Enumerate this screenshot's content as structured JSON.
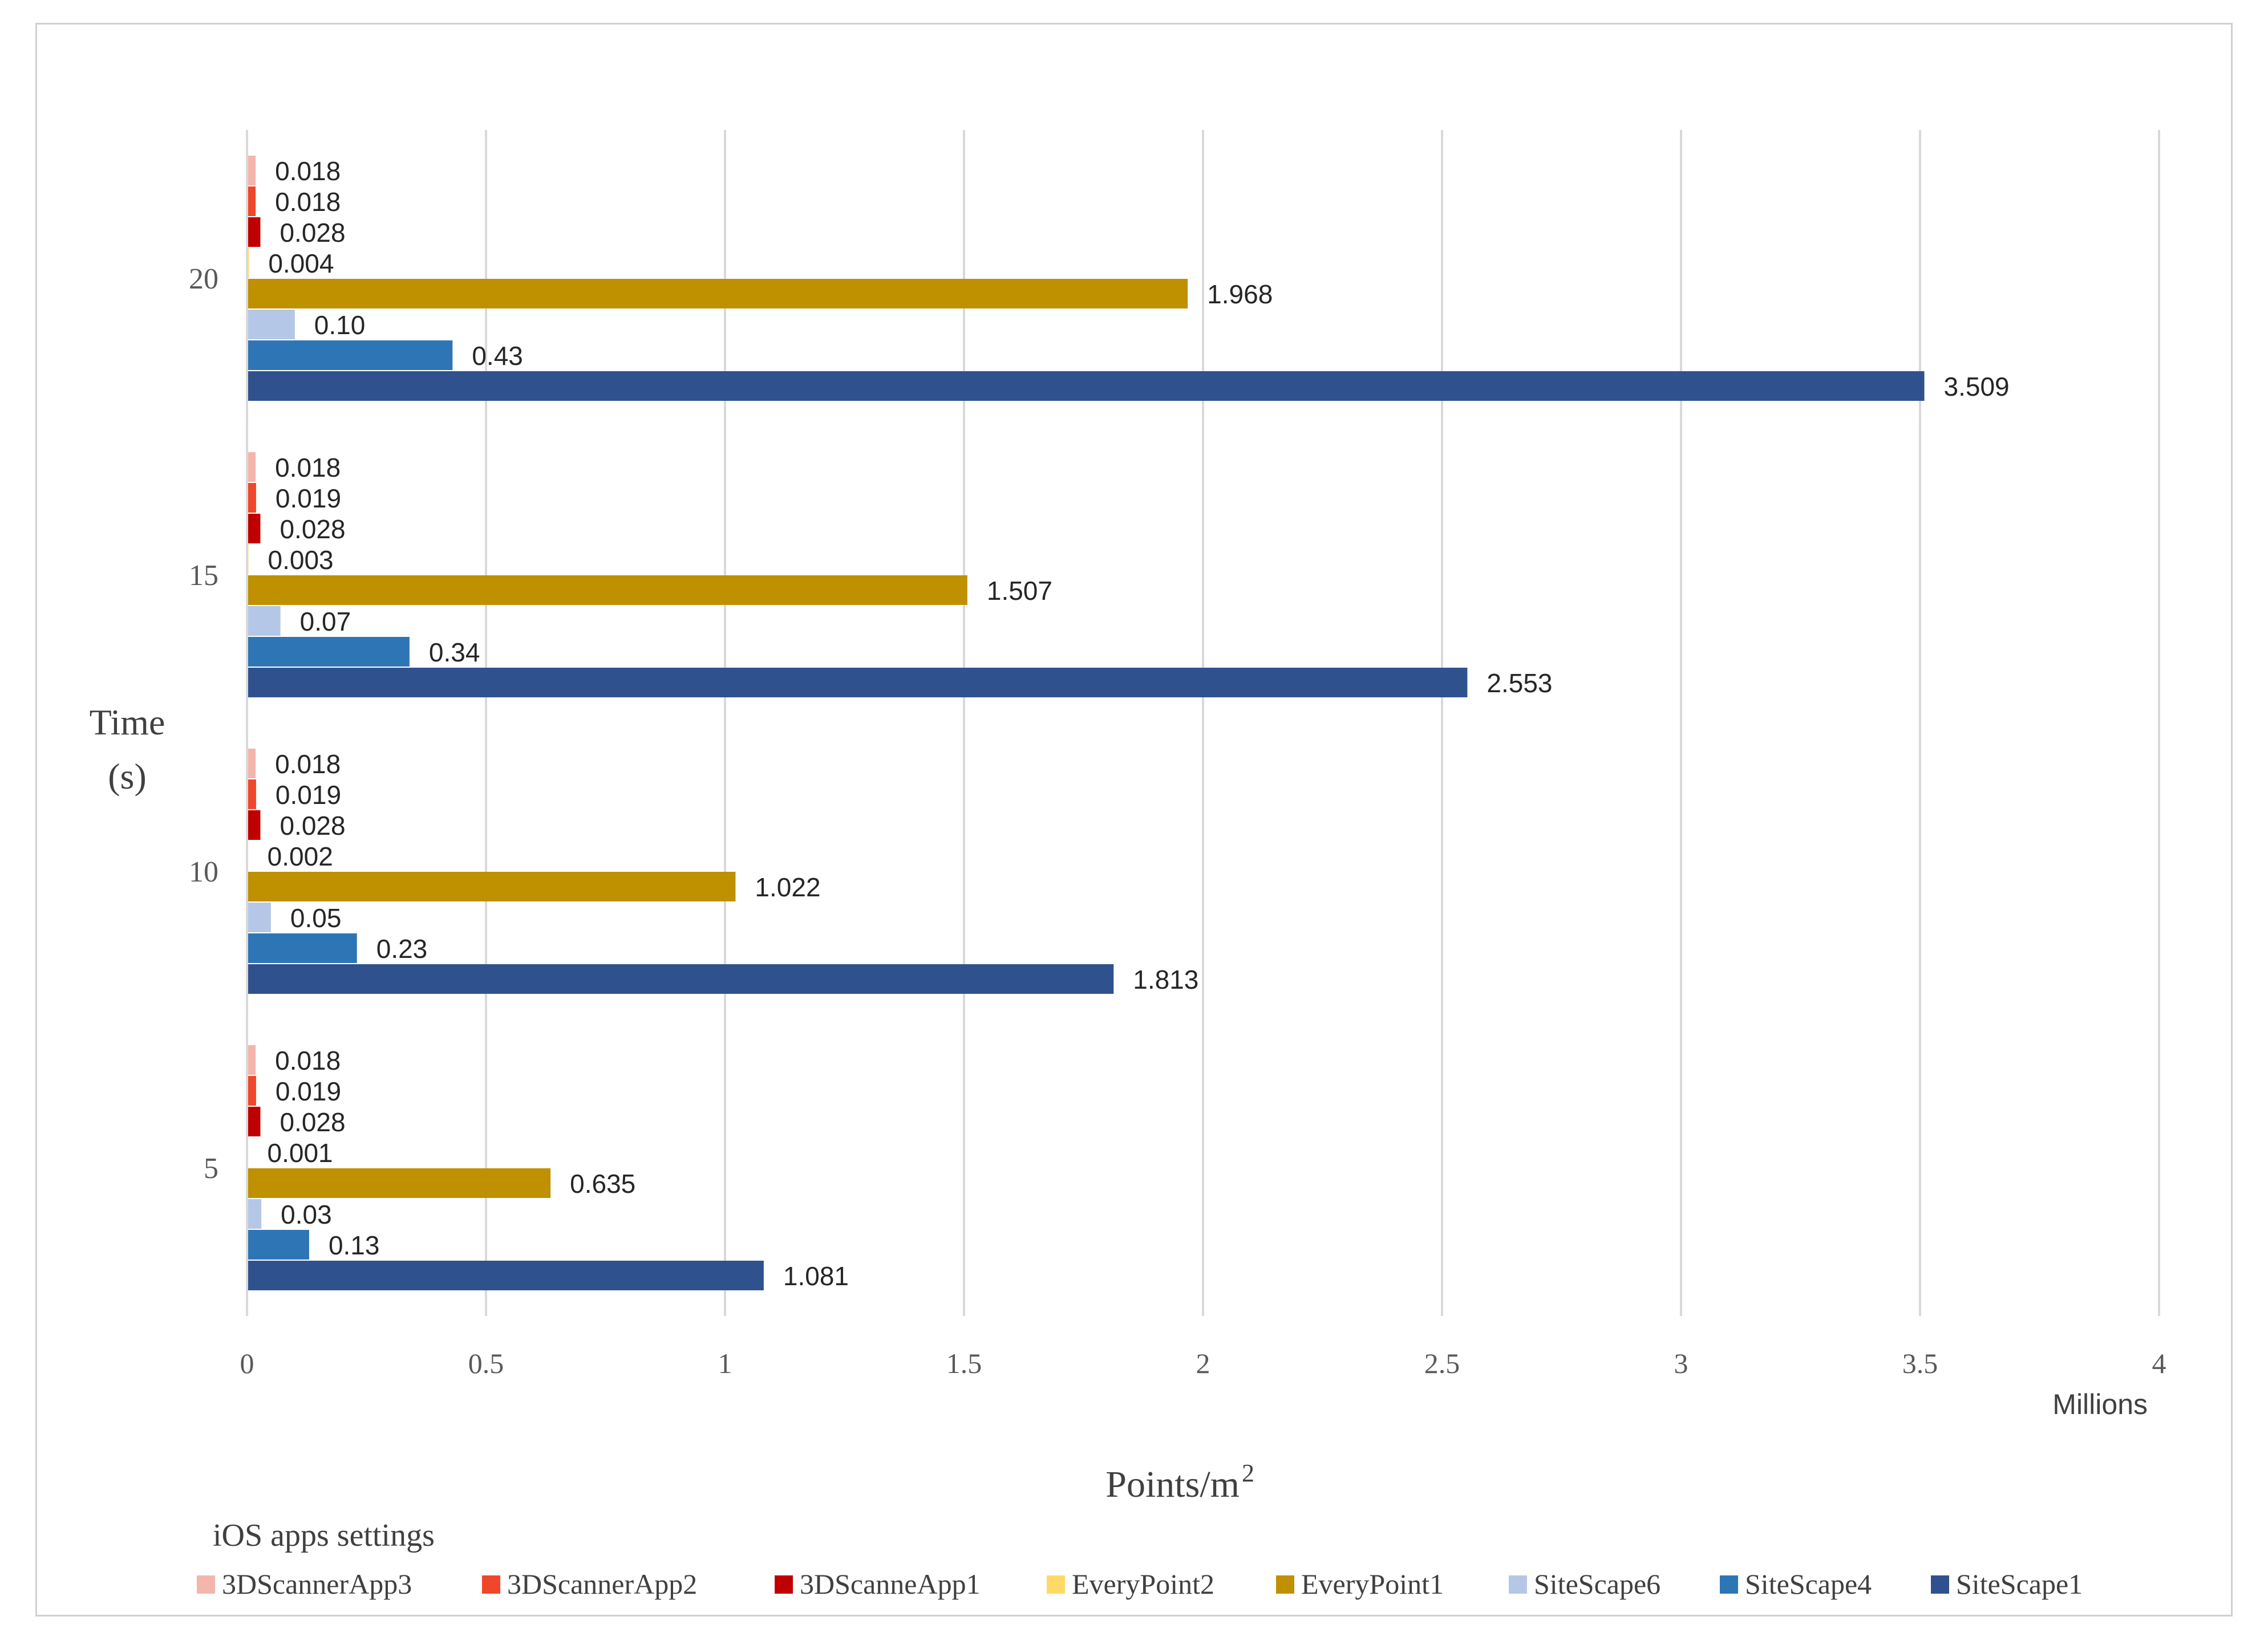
{
  "chart_data": {
    "type": "bar",
    "orientation": "horizontal",
    "title": "",
    "xlabel": "Points/m",
    "xlabel_superscript": "2",
    "x_unit_label": "Millions",
    "ylabel_line1": "Time",
    "ylabel_line2": "(s)",
    "xlim": [
      0,
      4
    ],
    "xticks": [
      0,
      0.5,
      1,
      1.5,
      2,
      2.5,
      3,
      3.5,
      4
    ],
    "xtick_labels": [
      "0",
      "0.5",
      "1",
      "1.5",
      "2",
      "2.5",
      "3",
      "3.5",
      "4"
    ],
    "grid": true,
    "legend_title": "iOS apps settings",
    "legend_position": "bottom",
    "categories": [
      "5",
      "10",
      "15",
      "20"
    ],
    "series": [
      {
        "name": "3DScannerApp3",
        "color": "#F4B5AC",
        "values": [
          0.018,
          0.018,
          0.018,
          0.018
        ],
        "labels": [
          "0.018",
          "0.018",
          "0.018",
          "0.018"
        ]
      },
      {
        "name": "3DScannerApp2",
        "color": "#F0462A",
        "values": [
          0.019,
          0.019,
          0.019,
          0.018
        ],
        "labels": [
          "0.019",
          "0.019",
          "0.019",
          "0.018"
        ]
      },
      {
        "name": "3DScanneApp1",
        "color": "#C00000",
        "values": [
          0.028,
          0.028,
          0.028,
          0.028
        ],
        "labels": [
          "0.028",
          "0.028",
          "0.028",
          "0.028"
        ]
      },
      {
        "name": "EveryPoint2",
        "color": "#FFD966",
        "values": [
          0.001,
          0.002,
          0.003,
          0.004
        ],
        "labels": [
          "0.001",
          "0.002",
          "0.003",
          "0.004"
        ]
      },
      {
        "name": "EveryPoint1",
        "color": "#BF9000",
        "values": [
          0.635,
          1.022,
          1.507,
          1.968
        ],
        "labels": [
          "0.635",
          "1.022",
          "1.507",
          "1.968"
        ]
      },
      {
        "name": "SiteScape6",
        "color": "#B4C7E7",
        "values": [
          0.03,
          0.05,
          0.07,
          0.1
        ],
        "labels": [
          "0.03",
          "0.05",
          "0.07",
          "0.10"
        ]
      },
      {
        "name": "SiteScape4",
        "color": "#2E75B6",
        "values": [
          0.13,
          0.23,
          0.34,
          0.43
        ],
        "labels": [
          "0.13",
          "0.23",
          "0.34",
          "0.43"
        ]
      },
      {
        "name": "SiteScape1",
        "color": "#2F528F",
        "values": [
          1.081,
          1.813,
          2.553,
          3.509
        ],
        "labels": [
          "1.081",
          "1.813",
          "2.553",
          "3.509"
        ]
      }
    ]
  }
}
